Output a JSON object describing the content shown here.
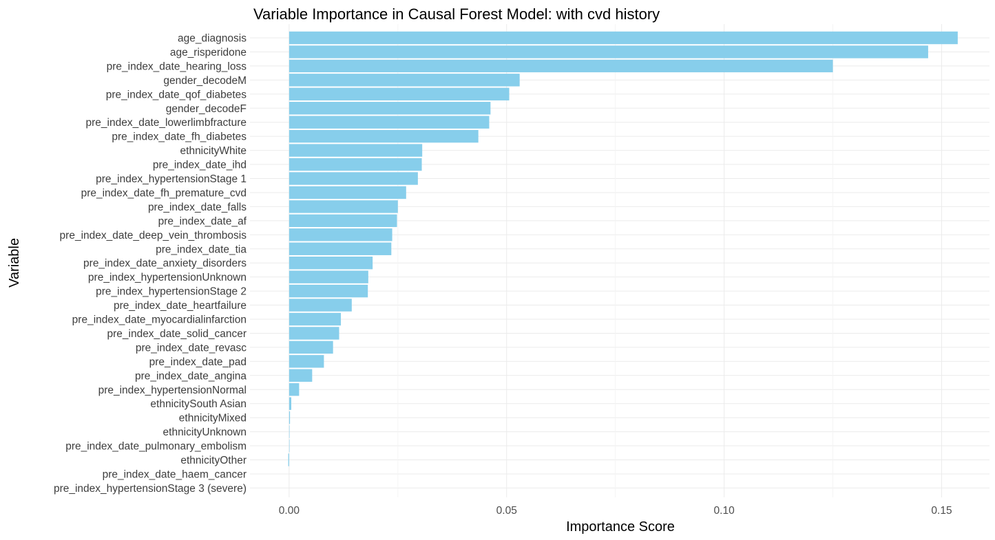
{
  "chart_data": {
    "type": "bar",
    "orientation": "horizontal",
    "title": "Variable Importance in Causal Forest Model: with cvd history",
    "xlabel": "Importance Score",
    "ylabel": "Variable",
    "xlim": [
      -0.009,
      0.161
    ],
    "xticks": [
      0.0,
      0.05,
      0.1,
      0.15
    ],
    "xtick_labels": [
      "0.00",
      "0.05",
      "0.10",
      "0.15"
    ],
    "bar_color": "#87CEEB",
    "grid": true,
    "legend": "none",
    "categories": [
      "age_diagnosis",
      "age_risperidone",
      "pre_index_date_hearing_loss",
      "gender_decodeM",
      "pre_index_date_qof_diabetes",
      "gender_decodeF",
      "pre_index_date_lowerlimbfracture",
      "pre_index_date_fh_diabetes",
      "ethnicityWhite",
      "pre_index_date_ihd",
      "pre_index_hypertensionStage 1",
      "pre_index_date_fh_premature_cvd",
      "pre_index_date_falls",
      "pre_index_date_af",
      "pre_index_date_deep_vein_thrombosis",
      "pre_index_date_tia",
      "pre_index_date_anxiety_disorders",
      "pre_index_hypertensionUnknown",
      "pre_index_hypertensionStage 2",
      "pre_index_date_heartfailure",
      "pre_index_date_myocardialinfarction",
      "pre_index_date_solid_cancer",
      "pre_index_date_revasc",
      "pre_index_date_pad",
      "pre_index_date_angina",
      "pre_index_hypertensionNormal",
      "ethnicitySouth Asian",
      "ethnicityMixed",
      "ethnicityUnknown",
      "pre_index_date_pulmonary_embolism",
      "ethnicityOther",
      "pre_index_date_haem_cancer",
      "pre_index_hypertensionStage 3 (severe)"
    ],
    "values": [
      0.1537,
      0.1469,
      0.125,
      0.053,
      0.0506,
      0.0463,
      0.046,
      0.0435,
      0.0306,
      0.0305,
      0.0296,
      0.0269,
      0.025,
      0.0248,
      0.0237,
      0.0235,
      0.0192,
      0.0182,
      0.0181,
      0.0144,
      0.0119,
      0.0115,
      0.0101,
      0.008,
      0.0053,
      0.0023,
      0.0005,
      0.0002,
      0.0001,
      0.0001,
      -0.0002,
      0.0,
      0.0
    ]
  }
}
